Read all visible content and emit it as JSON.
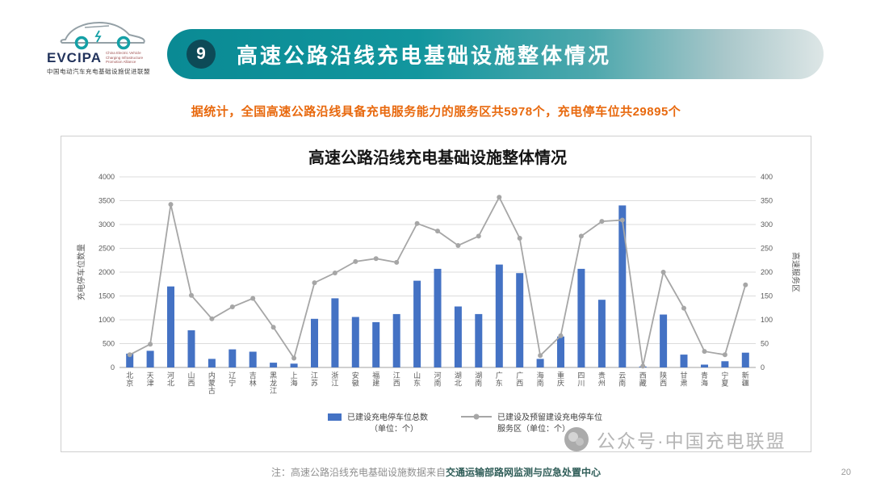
{
  "logo": {
    "name": "EVCIPA",
    "subtitle_en": "China Electric Vehicle Charging Infrastructure Promotion Alliance",
    "subtitle_cn": "中国电动汽车充电基础设施促进联盟"
  },
  "header": {
    "badge": "9",
    "title": "高速公路沿线充电基础设施整体情况"
  },
  "stats_line": "据统计，全国高速公路沿线具备充电服务能力的服务区共5978个，充电停车位共29895个",
  "chart_data": {
    "type": "bar+line combo",
    "title": "高速公路沿线充电基础设施整体情况",
    "categories": [
      "北京",
      "天津",
      "河北",
      "山西",
      "内蒙古",
      "辽宁",
      "吉林",
      "黑龙江",
      "上海",
      "江苏",
      "浙江",
      "安徽",
      "福建",
      "江西",
      "山东",
      "河南",
      "湖北",
      "湖南",
      "广东",
      "广西",
      "海南",
      "重庆",
      "四川",
      "贵州",
      "云南",
      "西藏",
      "陕西",
      "甘肃",
      "青海",
      "宁夏",
      "新疆"
    ],
    "series": [
      {
        "name": "已建设充电停车位总数（单位：个）",
        "type": "bar",
        "axis": "left",
        "color": "#4472C4",
        "values": [
          290,
          350,
          1700,
          780,
          180,
          380,
          330,
          100,
          80,
          1020,
          1450,
          1060,
          950,
          1120,
          1820,
          2070,
          1280,
          1120,
          2160,
          1980,
          180,
          650,
          2070,
          1420,
          3400,
          20,
          1110,
          270,
          60,
          130,
          310
        ]
      },
      {
        "name": "已建设及预留建设充电停车位服务区（单位：个）",
        "type": "line",
        "axis": "right",
        "color": "#A6A6A6",
        "values": [
          30,
          55,
          385,
          170,
          115,
          143,
          163,
          95,
          22,
          200,
          223,
          250,
          257,
          248,
          340,
          322,
          288,
          310,
          402,
          305,
          28,
          75,
          310,
          345,
          348,
          3,
          225,
          140,
          38,
          30,
          195
        ]
      }
    ],
    "left_axis": {
      "label": "充电停车位数量",
      "min": 0,
      "max": 4000,
      "step": 500
    },
    "right_axis": {
      "label": "高速服务区",
      "min": 0,
      "max": 450,
      "step": 50
    },
    "legend": [
      {
        "marker": "bar",
        "lines": [
          "已建设充电停车位总数",
          "（单位：个）"
        ]
      },
      {
        "marker": "line",
        "lines": [
          "已建设及预留建设充电停车位",
          "服务区（单位：个）"
        ]
      }
    ],
    "grid": true,
    "legend_position": "bottom"
  },
  "footer": {
    "note_prefix": "注：高速公路沿线充电基础设施数据来自",
    "note_bold": "交通运输部路网监测与应急处置中心",
    "watermark": "公众号·中国充电联盟",
    "page_number": "20"
  }
}
